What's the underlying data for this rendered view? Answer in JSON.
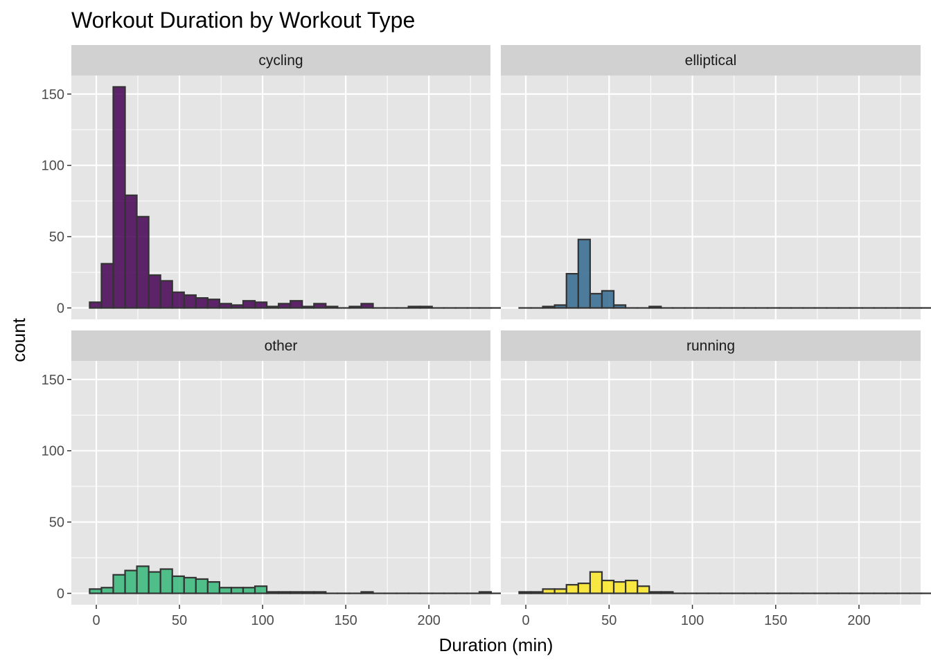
{
  "chart_data": {
    "type": "bar",
    "title": "Workout Duration by Workout Type",
    "xlabel": "Duration (min)",
    "ylabel": "count",
    "xlim": [
      -15,
      237
    ],
    "ylim": [
      -8,
      163
    ],
    "x_ticks": [
      0,
      50,
      100,
      150,
      200
    ],
    "y_ticks": [
      0,
      50,
      100,
      150
    ],
    "bin_width": 7.1,
    "bin_start": -4,
    "grid": true,
    "legend": "none",
    "colors": {
      "cycling": "#440154",
      "elliptical": "#31688e",
      "other": "#35b779",
      "running": "#fde725",
      "outline": "#333333",
      "panel_bg": "#e5e5e5",
      "strip_bg": "#d1d1d1",
      "grid": "#ffffff"
    },
    "panels": [
      {
        "name": "cycling",
        "values": [
          4,
          31,
          155,
          79,
          64,
          23,
          19,
          11,
          9,
          7,
          6,
          3,
          2,
          5,
          4,
          1,
          3,
          5,
          1,
          3,
          1,
          0,
          1,
          3,
          0,
          0,
          0,
          1,
          1,
          0,
          0,
          0,
          0,
          0,
          0,
          0,
          0,
          0,
          0
        ]
      },
      {
        "name": "elliptical",
        "values": [
          0,
          0,
          1,
          2,
          24,
          48,
          10,
          12,
          2,
          0,
          0,
          1,
          0,
          0,
          0,
          0,
          0,
          0,
          0,
          0,
          0,
          0,
          0,
          0,
          0,
          0,
          0,
          0,
          0,
          0,
          0,
          0,
          0,
          0,
          0,
          0,
          0,
          0,
          0
        ]
      },
      {
        "name": "other",
        "values": [
          3,
          4,
          13,
          16,
          19,
          15,
          17,
          12,
          11,
          10,
          8,
          4,
          4,
          4,
          5,
          1,
          1,
          1,
          1,
          1,
          0,
          0,
          0,
          1,
          0,
          0,
          0,
          0,
          0,
          0,
          0,
          0,
          0,
          1,
          0,
          0,
          0,
          1,
          0
        ]
      },
      {
        "name": "running",
        "values": [
          1,
          1,
          3,
          3,
          6,
          7,
          15,
          9,
          8,
          9,
          5,
          1,
          1,
          0,
          0,
          0,
          0,
          0,
          0,
          0,
          0,
          0,
          0,
          0,
          0,
          0,
          0,
          0,
          0,
          0,
          0,
          0,
          0,
          0,
          0,
          0,
          0,
          0,
          0
        ]
      }
    ]
  }
}
